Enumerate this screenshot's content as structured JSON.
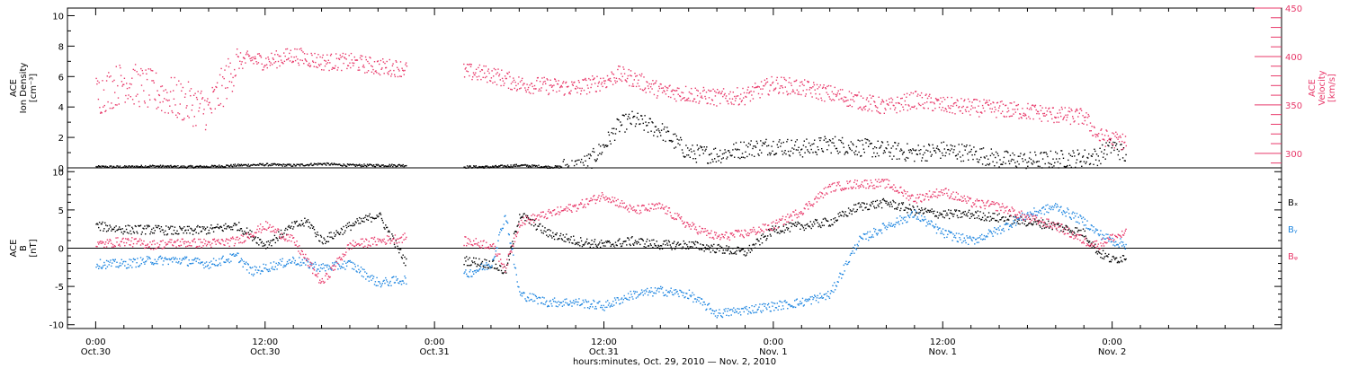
{
  "colors": {
    "density": "#000000",
    "velocity": "#e8396a",
    "bx": "#000000",
    "by": "#1f86e0",
    "bz": "#e8396a"
  },
  "xaxis": {
    "label": "hours:minutes, Oct. 29, 2010 — Nov. 2, 2010",
    "range_hours": [
      -2,
      84
    ],
    "ticks": [
      {
        "h": 0,
        "time": "0:00",
        "date": "Oct.30"
      },
      {
        "h": 12,
        "time": "12:00",
        "date": "Oct.30"
      },
      {
        "h": 24,
        "time": "0:00",
        "date": "Oct.31"
      },
      {
        "h": 36,
        "time": "12:00",
        "date": "Oct.31"
      },
      {
        "h": 48,
        "time": "0:00",
        "date": "Nov. 1"
      },
      {
        "h": 60,
        "time": "12:00",
        "date": "Nov. 1"
      },
      {
        "h": 72,
        "time": "0:00",
        "date": "Nov. 2"
      }
    ]
  },
  "chart_data": [
    {
      "type": "scatter",
      "panel": "top",
      "ylabel_lines": [
        "ACE",
        "Ion Density",
        "[cm⁻³]"
      ],
      "y2label_lines": [
        "ACE",
        "Velocity",
        "[km/s]"
      ],
      "ylim": [
        0,
        10.5
      ],
      "yticks": [
        0,
        2,
        4,
        6,
        8,
        10
      ],
      "y2lim": [
        285,
        450
      ],
      "y2ticks": [
        300,
        350,
        400,
        450
      ],
      "data_gap_hours": [
        22.8,
        25.8
      ],
      "series": [
        {
          "key": "density",
          "x": [
            0,
            2,
            4,
            6,
            8,
            10,
            12,
            14,
            16,
            18,
            20,
            22,
            24,
            26,
            28,
            30,
            32,
            34,
            35,
            36,
            37,
            38,
            40,
            42,
            44,
            46,
            48,
            50,
            52,
            54,
            56,
            58,
            60,
            62,
            64,
            66,
            68,
            70,
            71,
            72,
            73
          ],
          "y": [
            0.1,
            0.1,
            0.15,
            0.1,
            0.12,
            0.2,
            0.25,
            0.2,
            0.3,
            0.2,
            0.2,
            0.2,
            null,
            0.1,
            0.1,
            0.2,
            0.1,
            0.1,
            0.5,
            1.5,
            2.8,
            3.2,
            2.5,
            1.0,
            0.9,
            1.3,
            1.5,
            1.3,
            1.6,
            1.4,
            1.2,
            1.0,
            1.2,
            1.0,
            0.6,
            0.5,
            0.6,
            0.7,
            0.8,
            1.5,
            0.8
          ]
        },
        {
          "key": "velocity",
          "x": [
            0,
            2,
            4,
            6,
            8,
            10,
            11,
            12,
            14,
            16,
            18,
            20,
            22,
            24,
            26,
            28,
            30,
            32,
            34,
            36,
            37,
            38,
            40,
            42,
            44,
            46,
            48,
            50,
            52,
            54,
            56,
            58,
            60,
            62,
            64,
            66,
            68,
            70,
            71,
            72,
            73
          ],
          "y": [
            360,
            375,
            365,
            355,
            345,
            395,
            398,
            395,
            402,
            395,
            395,
            390,
            388,
            null,
            385,
            382,
            372,
            370,
            368,
            375,
            382,
            378,
            365,
            362,
            358,
            360,
            372,
            368,
            362,
            355,
            348,
            356,
            350,
            348,
            346,
            344,
            340,
            338,
            318,
            315,
            312
          ]
        }
      ]
    },
    {
      "type": "scatter",
      "panel": "bottom",
      "ylabel_lines": [
        "ACE",
        "B",
        "[nT]"
      ],
      "ylim": [
        -10.5,
        10.5
      ],
      "yticks": [
        -10,
        -5,
        0,
        5,
        10
      ],
      "data_gap_hours": [
        22.8,
        25.8
      ],
      "series": [
        {
          "name": "Bₓ",
          "key": "bx",
          "x": [
            0,
            2,
            4,
            6,
            8,
            10,
            12,
            14,
            15,
            16,
            18,
            20,
            22,
            24,
            26,
            28,
            29,
            30,
            32,
            34,
            36,
            38,
            40,
            42,
            44,
            46,
            48,
            50,
            52,
            54,
            56,
            58,
            60,
            62,
            64,
            66,
            68,
            70,
            71,
            72,
            73
          ],
          "y": [
            3.0,
            2.5,
            2.5,
            2.3,
            2.5,
            3.0,
            0.5,
            3.0,
            3.5,
            1.0,
            3.0,
            4.5,
            -2.0,
            null,
            -1.5,
            -2.0,
            -3.0,
            4.5,
            2.0,
            1.0,
            0.5,
            1.0,
            0.5,
            0.5,
            0.0,
            -0.5,
            2.5,
            3.0,
            3.5,
            5.5,
            6.0,
            5.0,
            4.5,
            4.5,
            4.0,
            3.5,
            3.0,
            2.0,
            -0.5,
            -1.5,
            -1.0
          ]
        },
        {
          "name": "Bᵧ",
          "key": "by",
          "x": [
            0,
            2,
            4,
            6,
            8,
            10,
            11,
            12,
            14,
            16,
            18,
            20,
            22,
            24,
            26,
            28,
            29,
            30,
            32,
            34,
            36,
            38,
            40,
            42,
            44,
            46,
            48,
            50,
            52,
            54,
            56,
            58,
            60,
            62,
            64,
            66,
            68,
            70,
            71,
            72,
            73
          ],
          "y": [
            -2.0,
            -2.0,
            -1.5,
            -1.5,
            -2.0,
            -1.0,
            -3.0,
            -2.5,
            -1.5,
            -2.5,
            -2.0,
            -4.5,
            -4.0,
            null,
            -3.5,
            -2.0,
            4.5,
            -6.0,
            -7.0,
            -7.0,
            -7.5,
            -6.0,
            -5.5,
            -6.0,
            -8.5,
            -8.0,
            -7.5,
            -7.0,
            -6.0,
            1.0,
            3.0,
            4.5,
            2.0,
            1.0,
            2.5,
            4.5,
            5.5,
            3.5,
            2.0,
            1.0,
            0.5
          ]
        },
        {
          "name": "Bᵩ",
          "key": "bz",
          "x": [
            0,
            2,
            4,
            6,
            8,
            10,
            11,
            12,
            14,
            16,
            18,
            20,
            22,
            24,
            26,
            28,
            29,
            30,
            32,
            34,
            36,
            38,
            40,
            42,
            44,
            46,
            48,
            50,
            52,
            54,
            56,
            58,
            60,
            62,
            64,
            66,
            68,
            70,
            71,
            72,
            73
          ],
          "y": [
            0.5,
            1.0,
            0.5,
            0.8,
            0.7,
            1.0,
            2.0,
            3.0,
            1.0,
            -4.5,
            0.5,
            1.0,
            1.5,
            null,
            1.0,
            0.5,
            -2.5,
            3.5,
            4.5,
            5.5,
            7.0,
            5.0,
            5.5,
            3.0,
            1.5,
            2.0,
            3.0,
            5.0,
            8.0,
            8.5,
            8.5,
            6.5,
            7.5,
            6.0,
            5.5,
            4.0,
            3.0,
            1.0,
            0.5,
            1.5,
            2.0
          ]
        }
      ]
    }
  ]
}
